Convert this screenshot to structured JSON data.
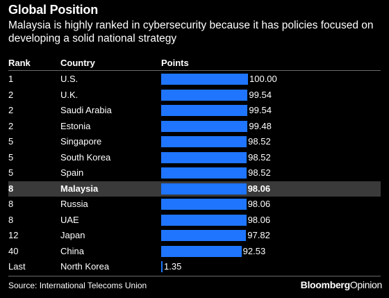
{
  "chart_data": {
    "type": "table",
    "title": "Global Position",
    "subtitle": "Malaysia is highly ranked in cybersecurity because it has policies focused on developing a solid national strategy",
    "columns": [
      "Rank",
      "Country",
      "Points"
    ],
    "rows": [
      {
        "rank": "1",
        "country": "U.S.",
        "points": 100.0,
        "label": "100.00",
        "highlight": false
      },
      {
        "rank": "2",
        "country": "U.K.",
        "points": 99.54,
        "label": "99.54",
        "highlight": false
      },
      {
        "rank": "2",
        "country": "Saudi Arabia",
        "points": 99.54,
        "label": "99.54",
        "highlight": false
      },
      {
        "rank": "2",
        "country": "Estonia",
        "points": 99.48,
        "label": "99.48",
        "highlight": false
      },
      {
        "rank": "5",
        "country": "Singapore",
        "points": 98.52,
        "label": "98.52",
        "highlight": false
      },
      {
        "rank": "5",
        "country": "South Korea",
        "points": 98.52,
        "label": "98.52",
        "highlight": false
      },
      {
        "rank": "5",
        "country": "Spain",
        "points": 98.52,
        "label": "98.52",
        "highlight": false
      },
      {
        "rank": "8",
        "country": "Malaysia",
        "points": 98.06,
        "label": "98.06",
        "highlight": true
      },
      {
        "rank": "8",
        "country": "Russia",
        "points": 98.06,
        "label": "98.06",
        "highlight": false
      },
      {
        "rank": "8",
        "country": "UAE",
        "points": 98.06,
        "label": "98.06",
        "highlight": false
      },
      {
        "rank": "12",
        "country": "Japan",
        "points": 97.82,
        "label": "97.82",
        "highlight": false
      },
      {
        "rank": "40",
        "country": "China",
        "points": 92.53,
        "label": "92.53",
        "highlight": false
      },
      {
        "rank": "Last",
        "country": "North Korea",
        "points": 1.35,
        "label": "1.35",
        "highlight": false
      }
    ],
    "xlim": [
      0,
      100
    ],
    "bar_color": "#1f75fe",
    "highlight_color": "#3a3a3a",
    "background": "#000000"
  },
  "footer": {
    "source": "Source: International Telecoms Union",
    "brand_main": "Bloomberg",
    "brand_sub": "Opinion"
  }
}
